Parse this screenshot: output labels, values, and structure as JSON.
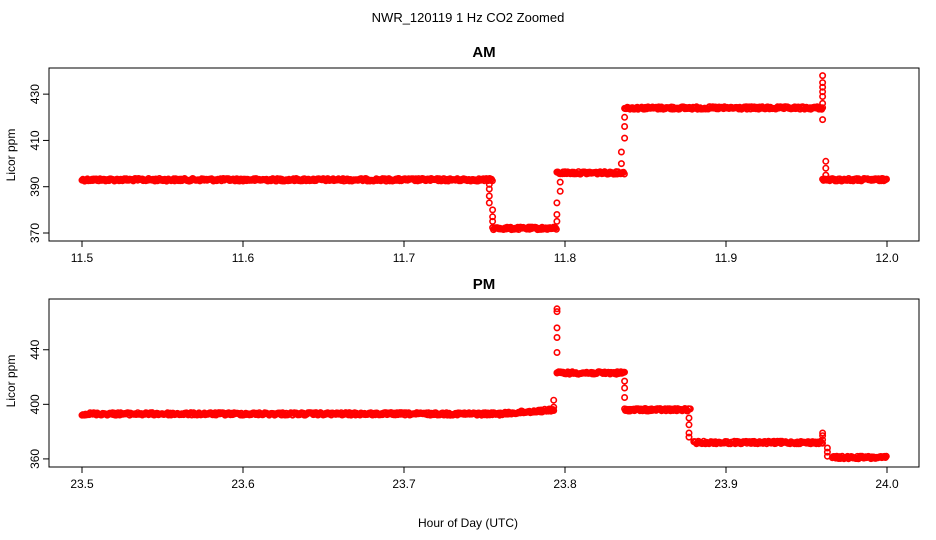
{
  "figure_title": "NWR_120119  1 Hz CO2 Zoomed",
  "xlabel": "Hour of Day (UTC)",
  "chart_data": [
    {
      "type": "scatter",
      "title": "AM",
      "ylabel": "Licor ppm",
      "xlim": [
        11.5,
        12.0
      ],
      "ylim": [
        370,
        440
      ],
      "xticks": [
        "11.5",
        "11.6",
        "11.7",
        "11.8",
        "11.9",
        "12.0"
      ],
      "yticks": [
        "370",
        "390",
        "410",
        "430"
      ],
      "marker_color": "#ff0000",
      "segments": [
        {
          "x_start": 11.5,
          "x_end": 11.755,
          "y": 393
        },
        {
          "x_start": 11.755,
          "x_end": 11.795,
          "y": 372
        },
        {
          "x_start": 11.795,
          "x_end": 11.837,
          "y": 396
        },
        {
          "x_start": 11.837,
          "x_end": 11.96,
          "y": 424
        },
        {
          "x_start": 11.96,
          "x_end": 12.0,
          "y": 393
        }
      ],
      "transitions": [
        {
          "x": 11.753,
          "y": [
            391,
            389,
            386,
            383
          ]
        },
        {
          "x": 11.755,
          "y": [
            380,
            377,
            375
          ]
        },
        {
          "x": 11.795,
          "y": [
            375,
            378,
            383
          ]
        },
        {
          "x": 11.797,
          "y": [
            388,
            392
          ]
        },
        {
          "x": 11.835,
          "y": [
            400,
            405
          ]
        },
        {
          "x": 11.837,
          "y": [
            411,
            416,
            420
          ]
        },
        {
          "x": 11.96,
          "y": [
            426,
            429,
            431,
            433,
            435,
            438,
            419
          ]
        },
        {
          "x": 11.962,
          "y": [
            401,
            398,
            395,
            393
          ]
        }
      ]
    },
    {
      "type": "scatter",
      "title": "PM",
      "ylabel": "Licor ppm",
      "xlim": [
        23.5,
        24.0
      ],
      "ylim": [
        357,
        475
      ],
      "xticks": [
        "23.5",
        "23.6",
        "23.7",
        "23.8",
        "23.9",
        "24.0"
      ],
      "yticks": [
        "360",
        "400",
        "440"
      ],
      "marker_color": "#ff0000",
      "segments": [
        {
          "x_start": 23.5,
          "x_end": 23.76,
          "y": 393
        },
        {
          "x_start": 23.76,
          "x_end": 23.793,
          "y": 393,
          "y_end": 396
        },
        {
          "x_start": 23.795,
          "x_end": 23.837,
          "y": 423
        },
        {
          "x_start": 23.837,
          "x_end": 23.878,
          "y": 396
        },
        {
          "x_start": 23.88,
          "x_end": 23.96,
          "y": 372
        },
        {
          "x_start": 23.966,
          "x_end": 24.0,
          "y": 361
        }
      ],
      "transitions": [
        {
          "x": 23.793,
          "y": [
            403,
            398
          ]
        },
        {
          "x": 23.795,
          "y": [
            470,
            468,
            456,
            449,
            438,
            423
          ]
        },
        {
          "x": 23.837,
          "y": [
            417,
            412,
            405
          ]
        },
        {
          "x": 23.877,
          "y": [
            390,
            385,
            379,
            376
          ]
        },
        {
          "x": 23.96,
          "y": [
            379,
            377,
            374
          ]
        },
        {
          "x": 23.963,
          "y": [
            368,
            365,
            362
          ]
        }
      ]
    }
  ]
}
